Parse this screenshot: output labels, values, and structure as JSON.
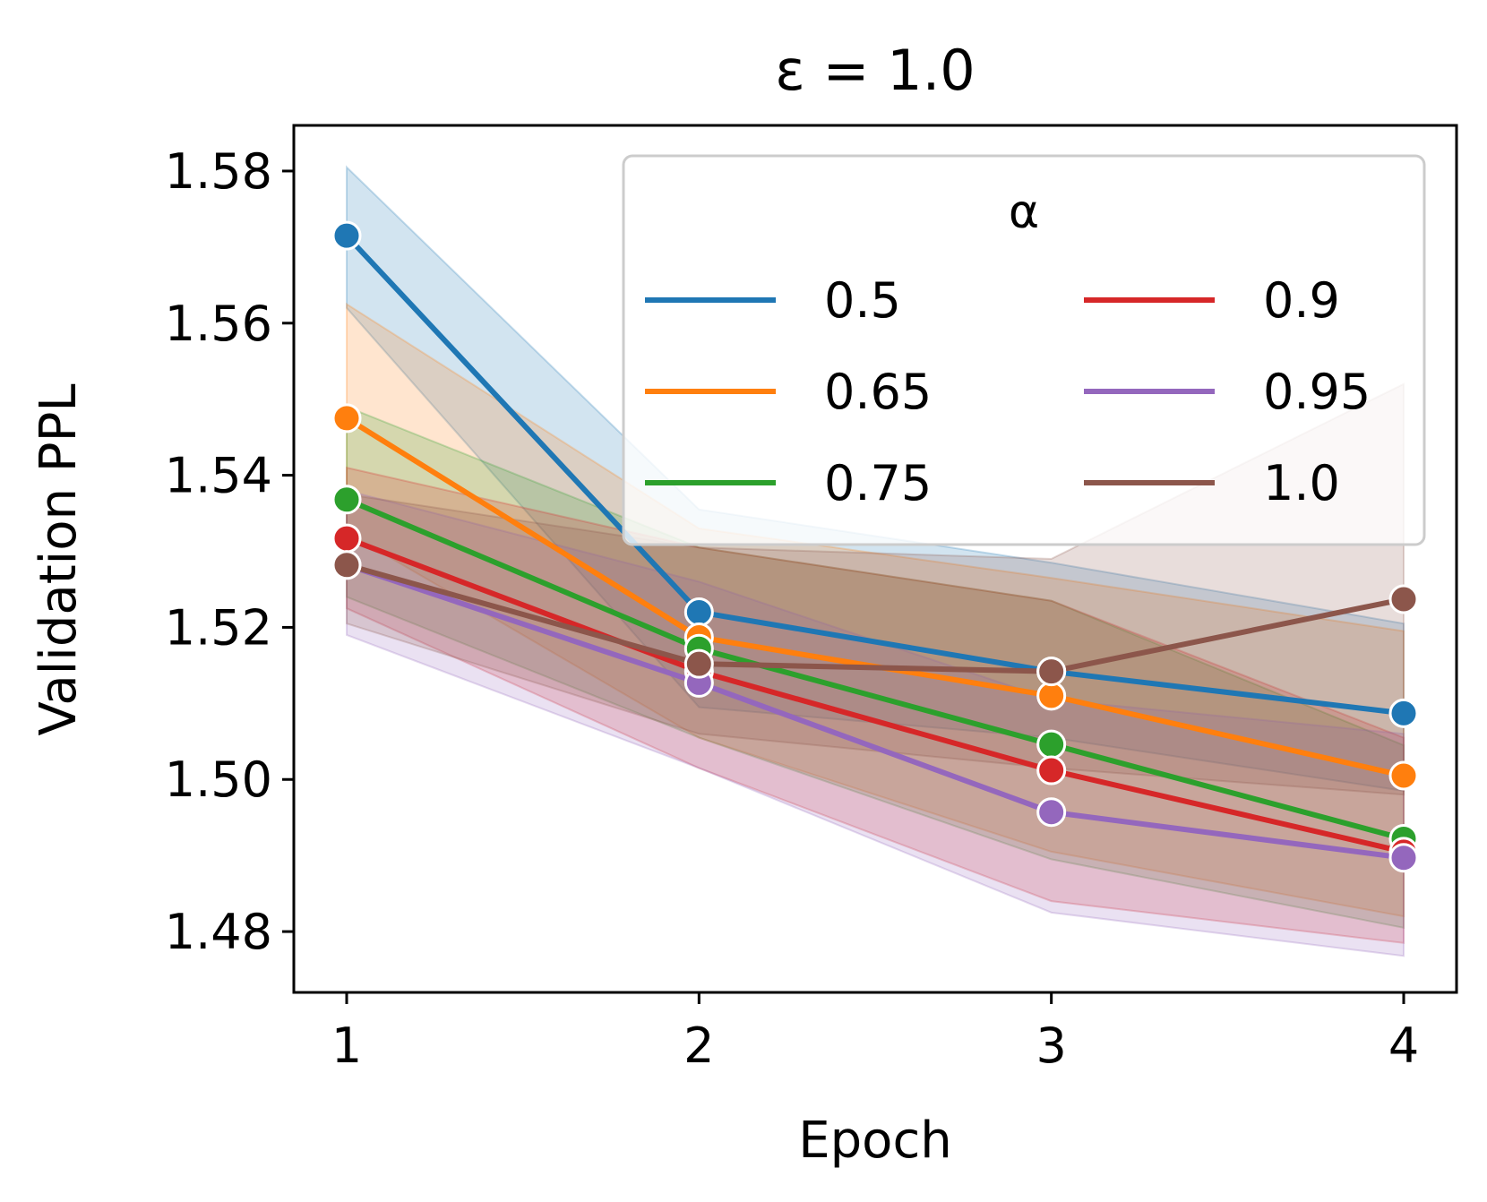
{
  "chart_data": {
    "type": "line",
    "title": "ε = 1.0",
    "xlabel": "Epoch",
    "ylabel": "Validation PPL",
    "x": [
      1,
      2,
      3,
      4
    ],
    "xlim": [
      0.85,
      4.15
    ],
    "ylim": [
      1.472,
      1.586
    ],
    "xticks": [
      "1",
      "2",
      "3",
      "4"
    ],
    "yticks": [
      1.48,
      1.5,
      1.52,
      1.54,
      1.56,
      1.58
    ],
    "ytick_labels": [
      "1.48",
      "1.50",
      "1.52",
      "1.54",
      "1.56",
      "1.58"
    ],
    "grid": false,
    "legend": {
      "title": "α",
      "position": "top-right",
      "columns": 2
    },
    "series": [
      {
        "name": "0.5",
        "color": "#1f77b4",
        "values": [
          1.5715,
          1.522,
          1.5142,
          1.5087
        ],
        "ci_low": [
          1.562,
          1.5095,
          1.5055,
          1.4985
        ],
        "ci_high": [
          1.5805,
          1.5355,
          1.5285,
          1.5205
        ]
      },
      {
        "name": "0.65",
        "color": "#ff7f0e",
        "values": [
          1.5475,
          1.5187,
          1.511,
          1.5005
        ],
        "ci_low": [
          1.5325,
          1.5055,
          1.4905,
          1.482
        ],
        "ci_high": [
          1.5625,
          1.533,
          1.5265,
          1.5195
        ]
      },
      {
        "name": "0.75",
        "color": "#2ca02c",
        "values": [
          1.5368,
          1.5172,
          1.5046,
          1.4922
        ],
        "ci_low": [
          1.524,
          1.5055,
          1.4895,
          1.4805
        ],
        "ci_high": [
          1.549,
          1.5305,
          1.5235,
          1.5045
        ]
      },
      {
        "name": "0.9",
        "color": "#d62728",
        "values": [
          1.5317,
          1.5142,
          1.5012,
          1.4905
        ],
        "ci_low": [
          1.5225,
          1.5015,
          1.484,
          1.4785
        ],
        "ci_high": [
          1.541,
          1.5305,
          1.5235,
          1.5055
        ]
      },
      {
        "name": "0.95",
        "color": "#9467bd",
        "values": [
          1.5282,
          1.5127,
          1.4957,
          1.4897
        ],
        "ci_low": [
          1.519,
          1.5015,
          1.4825,
          1.4768
        ],
        "ci_high": [
          1.538,
          1.526,
          1.5105,
          1.506
        ]
      },
      {
        "name": "1.0",
        "color": "#8c564b",
        "values": [
          1.5282,
          1.5152,
          1.5142,
          1.5237
        ],
        "ci_low": [
          1.5205,
          1.506,
          1.5015,
          1.498
        ],
        "ci_high": [
          1.5375,
          1.5305,
          1.529,
          1.552
        ]
      }
    ]
  }
}
